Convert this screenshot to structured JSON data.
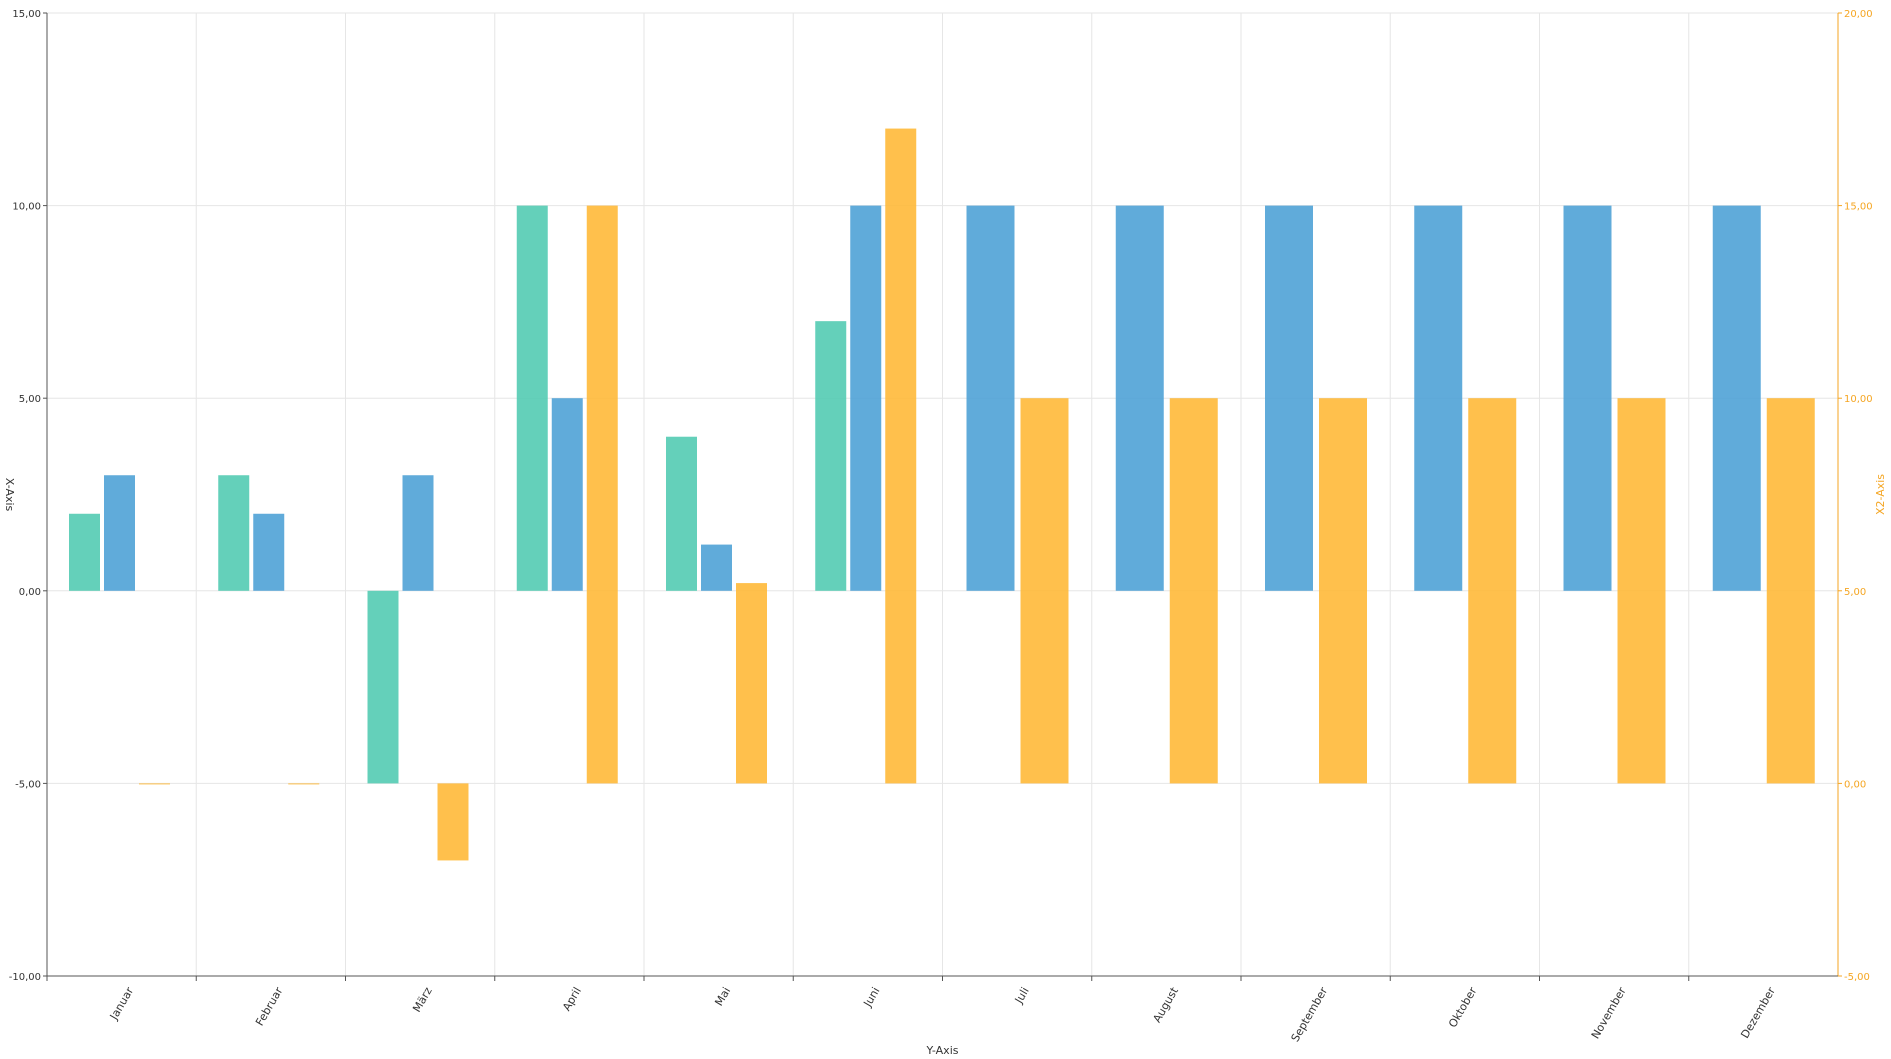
{
  "chart_data": {
    "type": "bar",
    "categories": [
      "Januar",
      "Februar",
      "März",
      "April",
      "Mai",
      "Juni",
      "Juli",
      "August",
      "September",
      "Oktober",
      "November",
      "Dezember"
    ],
    "series": [
      {
        "color": "#4ec9b0",
        "axis": "left",
        "values": [
          2,
          3,
          -5,
          10,
          4,
          7,
          null,
          null,
          null,
          null,
          null,
          null
        ]
      },
      {
        "color": "#4a9fd5",
        "axis": "left",
        "values": [
          3,
          2,
          3,
          5,
          1.2,
          10,
          10,
          10,
          10,
          10,
          10,
          10
        ]
      },
      {
        "color": "#ffb733",
        "axis": "right",
        "values": [
          0,
          0,
          -2,
          15,
          5.2,
          17,
          10,
          10,
          10,
          10,
          10,
          10
        ]
      }
    ],
    "xlabel": "Y-Axis",
    "ylabel": "X-Axis",
    "y2label": "X2-Axis",
    "ylim": [
      -10,
      15
    ],
    "y2lim": [
      -5,
      20
    ],
    "yticks": [
      "-10,00",
      "-5,00",
      "0,00",
      "5,00",
      "10,00",
      "15,00"
    ],
    "y2ticks": [
      "-5,00",
      "0,00",
      "5,00",
      "10,00",
      "15,00",
      "20,00"
    ],
    "grid": true,
    "axis_colors": {
      "left": "#555555",
      "right": "#f5a623"
    }
  }
}
